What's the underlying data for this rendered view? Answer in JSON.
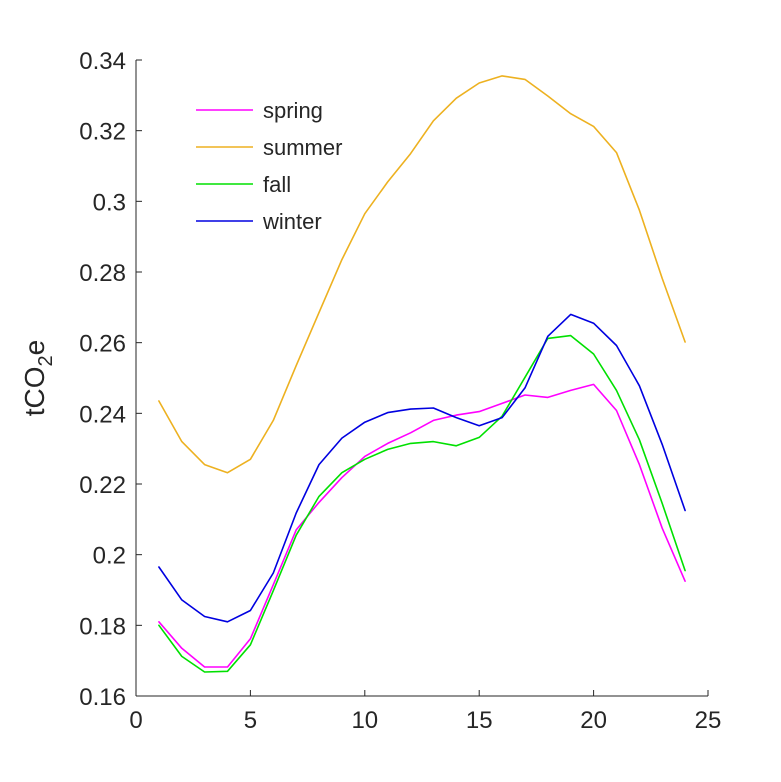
{
  "chart_data": {
    "type": "line",
    "title": "",
    "xlabel": "",
    "ylabel": "tCO2e",
    "ylabel_parts": {
      "base": "tCO",
      "sub": "2",
      "tail": "e"
    },
    "xlim": [
      0,
      25
    ],
    "ylim": [
      0.16,
      0.34
    ],
    "xticks": [
      0,
      5,
      10,
      15,
      20,
      25
    ],
    "yticks": [
      0.16,
      0.18,
      0.2,
      0.22,
      0.24,
      0.26,
      0.28,
      0.3,
      0.32,
      0.34
    ],
    "xtick_labels": [
      "0",
      "5",
      "10",
      "15",
      "20",
      "25"
    ],
    "ytick_labels": [
      "0.16",
      "0.18",
      "0.2",
      "0.22",
      "0.24",
      "0.26",
      "0.28",
      "0.3",
      "0.32",
      "0.34"
    ],
    "grid": false,
    "legend": {
      "placement": "top-left"
    },
    "x": [
      1,
      2,
      3,
      4,
      5,
      6,
      7,
      8,
      9,
      10,
      11,
      12,
      13,
      14,
      15,
      16,
      17,
      18,
      19,
      20,
      21,
      22,
      23,
      24
    ],
    "series": [
      {
        "name": "spring",
        "color": "#ff00ff",
        "values": [
          0.181,
          0.1735,
          0.1682,
          0.1682,
          0.1762,
          0.1915,
          0.207,
          0.2148,
          0.2218,
          0.2278,
          0.2315,
          0.2345,
          0.238,
          0.2395,
          0.2405,
          0.2428,
          0.2452,
          0.2445,
          0.2465,
          0.2482,
          0.2408,
          0.2255,
          0.2075,
          0.1925
        ]
      },
      {
        "name": "summer",
        "color": "#edb120",
        "values": [
          0.2435,
          0.232,
          0.2255,
          0.2232,
          0.227,
          0.238,
          0.2535,
          0.2685,
          0.2835,
          0.2965,
          0.3055,
          0.3135,
          0.3228,
          0.3292,
          0.3335,
          0.3355,
          0.3345,
          0.3298,
          0.3248,
          0.3212,
          0.3138,
          0.2975,
          0.2782,
          0.2602
        ]
      },
      {
        "name": "fall",
        "color": "#00e000",
        "values": [
          0.18,
          0.1712,
          0.1668,
          0.167,
          0.1745,
          0.1898,
          0.2055,
          0.2165,
          0.2232,
          0.227,
          0.2298,
          0.2315,
          0.232,
          0.2308,
          0.2332,
          0.2392,
          0.2502,
          0.2612,
          0.262,
          0.2568,
          0.2465,
          0.2325,
          0.2145,
          0.1955
        ]
      },
      {
        "name": "winter",
        "color": "#0000e0",
        "values": [
          0.1965,
          0.1872,
          0.1825,
          0.181,
          0.1842,
          0.1948,
          0.2118,
          0.2255,
          0.233,
          0.2375,
          0.2402,
          0.2412,
          0.2415,
          0.2388,
          0.2365,
          0.2388,
          0.2472,
          0.2618,
          0.268,
          0.2655,
          0.2592,
          0.2478,
          0.2312,
          0.2125
        ]
      }
    ]
  }
}
